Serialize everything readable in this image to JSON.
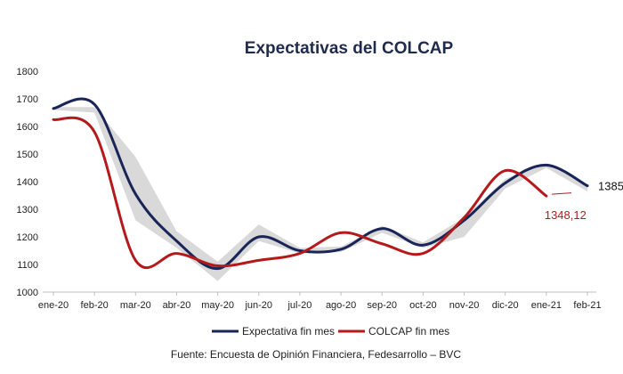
{
  "chart_data": {
    "type": "line",
    "title": "Expectativas del COLCAP",
    "xlabel": "",
    "ylabel": "",
    "categories": [
      "ene-20",
      "feb-20",
      "mar-20",
      "abr-20",
      "may-20",
      "jun-20",
      "jul-20",
      "ago-20",
      "sep-20",
      "oct-20",
      "nov-20",
      "dic-20",
      "ene-21",
      "feb-21"
    ],
    "y_ticks": [
      "1000",
      "1100",
      "1200",
      "1300",
      "1400",
      "1500",
      "1600",
      "1700",
      "1800"
    ],
    "ylim": [
      1000,
      1800
    ],
    "grid": false,
    "legend_position": "bottom",
    "series": [
      {
        "name": "Expectativa fin mes",
        "color": "#1a2557",
        "values": [
          1665,
          1680,
          1355,
          1185,
          1085,
          1200,
          1150,
          1155,
          1230,
          1170,
          1260,
          1395,
          1460,
          1385
        ]
      },
      {
        "name": "COLCAP fin mes",
        "color": "#b5191b",
        "values": [
          1625,
          1580,
          1115,
          1140,
          1095,
          1115,
          1140,
          1215,
          1175,
          1140,
          1270,
          1440,
          1348.12,
          null
        ]
      }
    ],
    "band": {
      "color": "#d9d9d9",
      "upper": [
        1670,
        1670,
        1490,
        1220,
        1110,
        1245,
        1160,
        1165,
        1240,
        1180,
        1270,
        1410,
        1465,
        1390
      ],
      "lower": [
        1660,
        1650,
        1260,
        1160,
        1040,
        1185,
        1140,
        1145,
        1215,
        1160,
        1200,
        1375,
        1450,
        1365
      ]
    },
    "annotations": [
      {
        "text": "1385",
        "series": "Expectativa fin mes"
      },
      {
        "text": "1348,12",
        "series": "COLCAP fin mes"
      }
    ]
  },
  "source": "Fuente: Encuesta de Opinión Financiera, Fedesarrollo – BVC"
}
